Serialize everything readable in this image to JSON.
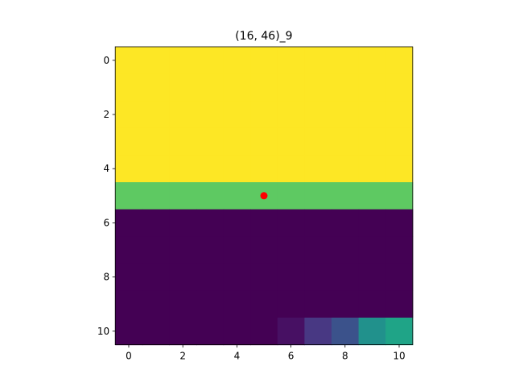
{
  "chart_data": {
    "type": "heatmap",
    "title": "(16, 46)_9",
    "xlabel": "",
    "ylabel": "",
    "xlim": [
      -0.5,
      10.5
    ],
    "ylim": [
      10.5,
      -0.5
    ],
    "x_ticks": [
      0,
      2,
      4,
      6,
      8,
      10
    ],
    "y_ticks": [
      0,
      2,
      4,
      6,
      8,
      10
    ],
    "colormap": "viridis",
    "value_range": [
      0,
      1
    ],
    "grid": false,
    "rows": [
      [
        1,
        1,
        1,
        1,
        1,
        1,
        1,
        1,
        1,
        1,
        1
      ],
      [
        1,
        1,
        1,
        1,
        1,
        1,
        1,
        1,
        1,
        1,
        1
      ],
      [
        1,
        1,
        1,
        1,
        1,
        1,
        1,
        1,
        1,
        1,
        1
      ],
      [
        1,
        1,
        1,
        1,
        1,
        1,
        1,
        1,
        1,
        1,
        1
      ],
      [
        1,
        1,
        1,
        1,
        1,
        1,
        1,
        1,
        1,
        1,
        1
      ],
      [
        0.75,
        0.75,
        0.75,
        0.75,
        0.75,
        0.75,
        0.75,
        0.75,
        0.75,
        0.75,
        0.75
      ],
      [
        0,
        0,
        0,
        0,
        0,
        0,
        0,
        0,
        0,
        0,
        0
      ],
      [
        0,
        0,
        0,
        0,
        0,
        0,
        0,
        0,
        0,
        0,
        0
      ],
      [
        0,
        0,
        0,
        0,
        0,
        0,
        0,
        0,
        0,
        0,
        0
      ],
      [
        0,
        0,
        0,
        0,
        0,
        0,
        0,
        0,
        0,
        0,
        0
      ],
      [
        0,
        0,
        0,
        0,
        0,
        0,
        0.05,
        0.2,
        0.35,
        0.5,
        0.6
      ]
    ],
    "marker": {
      "x": 5,
      "y": 5,
      "color": "#ff0000"
    }
  }
}
